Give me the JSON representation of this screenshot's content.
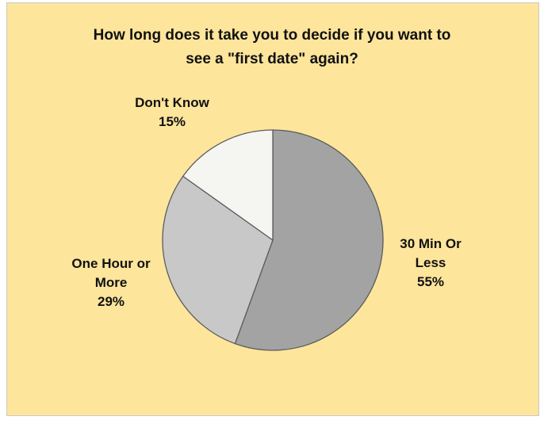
{
  "chart_data": {
    "type": "pie",
    "title_lines": [
      "How long does it take you to decide if you want to",
      "see a \"first date\" again?"
    ],
    "slices": [
      {
        "label_lines": [
          "30 Min Or",
          "Less"
        ],
        "value": 55,
        "value_label": "55%",
        "color": "#a3a3a3"
      },
      {
        "label_lines": [
          "One Hour or",
          "More"
        ],
        "value": 29,
        "value_label": "29%",
        "color": "#c8c8c8"
      },
      {
        "label_lines": [
          "Don't Know"
        ],
        "value": 15,
        "value_label": "15%",
        "color": "#f5f5f2"
      }
    ],
    "start_angle": "12 o'clock",
    "direction": "clockwise",
    "legend": "none",
    "background_color": "#fde59c",
    "border_color": "#5c5c5c"
  }
}
